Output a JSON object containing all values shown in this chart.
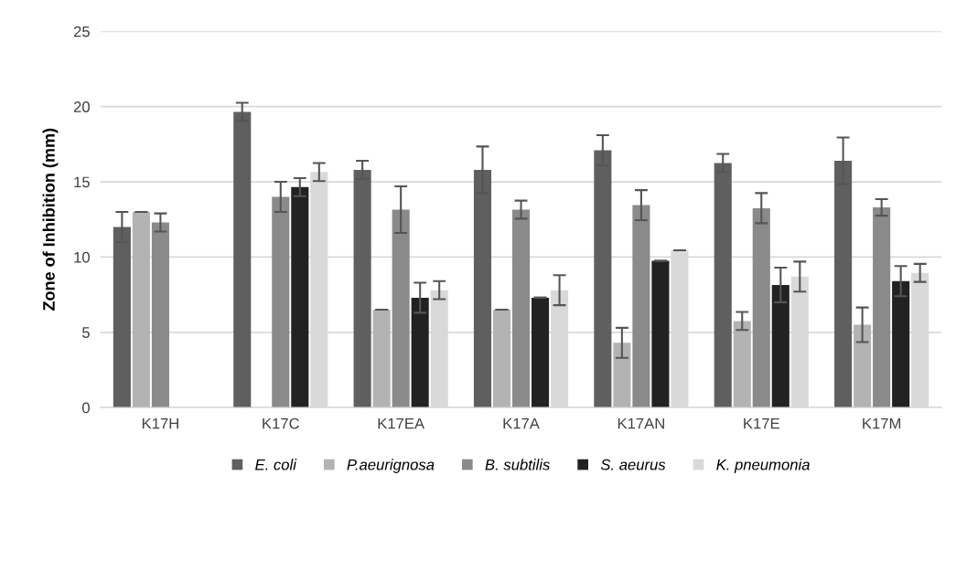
{
  "chart_data": {
    "type": "bar",
    "ylabel": "Zone of Inhibition (mm)",
    "categories": [
      "K17H",
      "K17C",
      "K17EA",
      "K17A",
      "K17AN",
      "K17E",
      "K17M"
    ],
    "series": [
      {
        "name": "E. coli",
        "color": "#5f5f5f",
        "values": [
          12.0,
          19.65,
          15.8,
          15.8,
          17.1,
          16.25,
          16.4
        ],
        "errors": [
          1.0,
          0.6,
          0.6,
          1.55,
          1.0,
          0.6,
          1.55
        ]
      },
      {
        "name": "P.aeurignosa",
        "color": "#b3b3b3",
        "values": [
          13.0,
          0,
          6.5,
          6.5,
          4.3,
          5.75,
          5.5
        ],
        "errors": [
          0,
          null,
          0,
          0,
          1.0,
          0.6,
          1.15
        ]
      },
      {
        "name": "B. subtilis",
        "color": "#8a8a8a",
        "values": [
          12.3,
          14.0,
          13.15,
          13.15,
          13.45,
          13.25,
          13.3
        ],
        "errors": [
          0.6,
          1.0,
          1.55,
          0.6,
          1.0,
          1.0,
          0.55
        ]
      },
      {
        "name": "S. aeurus",
        "color": "#222222",
        "values": [
          0,
          14.65,
          7.3,
          7.3,
          9.75,
          8.15,
          8.4
        ],
        "errors": [
          null,
          0.6,
          1.0,
          0,
          0,
          1.15,
          1.0
        ]
      },
      {
        "name": "K. pneumonia",
        "color": "#d9d9d9",
        "values": [
          0,
          15.65,
          7.8,
          7.8,
          10.45,
          8.7,
          8.95
        ],
        "errors": [
          null,
          0.6,
          0.6,
          1.0,
          0,
          1.0,
          0.6
        ]
      }
    ],
    "ylim": [
      0,
      25
    ],
    "yticks": [
      0,
      5,
      10,
      15,
      20,
      25
    ],
    "grid": "y",
    "legend": "bottom"
  }
}
